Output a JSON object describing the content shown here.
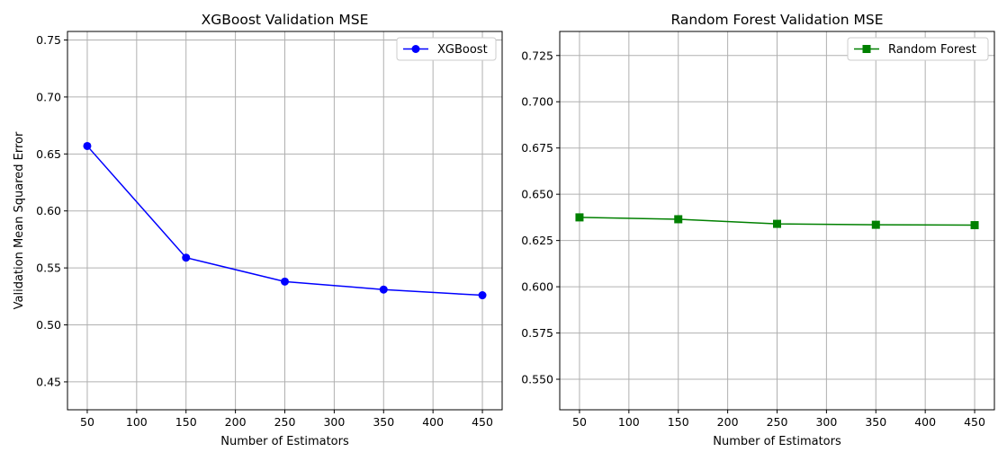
{
  "chart_data": [
    {
      "type": "line",
      "title": "XGBoost Validation MSE",
      "xlabel": "Number of Estimators",
      "ylabel": "Validation Mean Squared Error",
      "x": [
        50,
        150,
        250,
        350,
        450
      ],
      "series": [
        {
          "name": "XGBoost",
          "values": [
            0.657,
            0.559,
            0.538,
            0.531,
            0.526
          ],
          "color": "#0000ff",
          "marker": "circle"
        }
      ],
      "xlim": [
        30,
        470
      ],
      "ylim": [
        0.4255,
        0.7575
      ],
      "xticks": [
        50,
        100,
        150,
        200,
        250,
        300,
        350,
        400,
        450
      ],
      "xtick_labels": [
        "50",
        "100",
        "150",
        "200",
        "250",
        "300",
        "350",
        "400",
        "450"
      ],
      "yticks": [
        0.45,
        0.5,
        0.55,
        0.6,
        0.65,
        0.7,
        0.75
      ],
      "ytick_labels": [
        "0.45",
        "0.50",
        "0.55",
        "0.60",
        "0.65",
        "0.70",
        "0.75"
      ],
      "grid": true,
      "legend": "top-right"
    },
    {
      "type": "line",
      "title": "Random Forest Validation MSE",
      "xlabel": "Number of Estimators",
      "ylabel": "",
      "x": [
        50,
        150,
        250,
        350,
        450
      ],
      "series": [
        {
          "name": "Random Forest",
          "values": [
            0.6375,
            0.6365,
            0.634,
            0.6335,
            0.6333
          ],
          "color": "#008000",
          "marker": "square"
        }
      ],
      "xlim": [
        30,
        470
      ],
      "ylim": [
        0.5335,
        0.738
      ],
      "xticks": [
        50,
        100,
        150,
        200,
        250,
        300,
        350,
        400,
        450
      ],
      "xtick_labels": [
        "50",
        "100",
        "150",
        "200",
        "250",
        "300",
        "350",
        "400",
        "450"
      ],
      "yticks": [
        0.55,
        0.575,
        0.6,
        0.625,
        0.65,
        0.675,
        0.7,
        0.725
      ],
      "ytick_labels": [
        "0.550",
        "0.575",
        "0.600",
        "0.625",
        "0.650",
        "0.675",
        "0.700",
        "0.725"
      ],
      "grid": true,
      "legend": "top-right"
    }
  ]
}
